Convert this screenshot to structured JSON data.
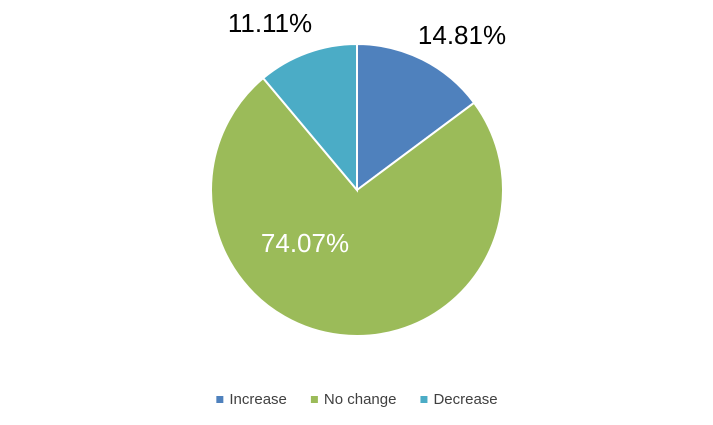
{
  "chart_data": {
    "type": "pie",
    "categories": [
      "Increase",
      "No change",
      "Decrease"
    ],
    "values": [
      14.81,
      74.07,
      11.11
    ],
    "value_labels": [
      "14.81%",
      "74.07%",
      "11.11%"
    ],
    "colors": [
      "#4f81bd",
      "#9bbb59",
      "#4bacc6"
    ],
    "legend": "bottom"
  }
}
